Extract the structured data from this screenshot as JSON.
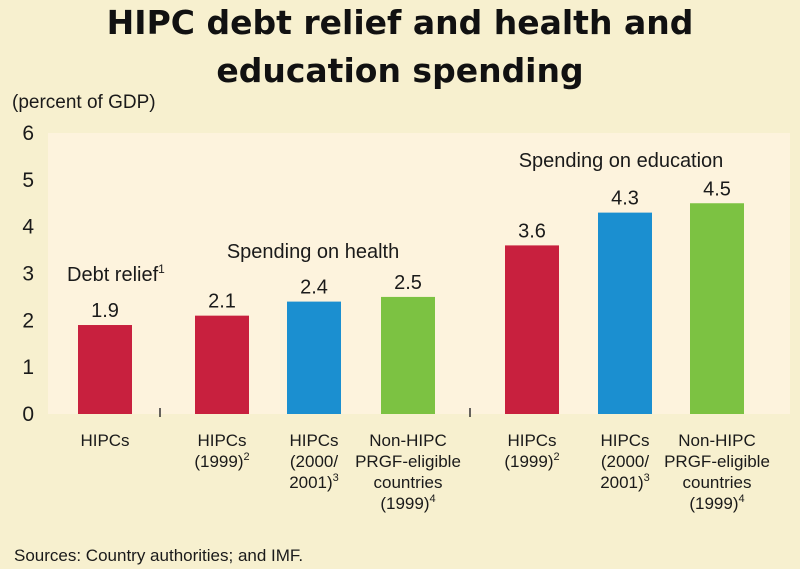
{
  "chart_data": {
    "type": "bar",
    "title_lines": [
      "HIPC debt relief and health and",
      "education spending"
    ],
    "ylabel": "(percent of GDP)",
    "ylim": [
      0,
      6
    ],
    "yticks": [
      0,
      1,
      2,
      3,
      4,
      5,
      6
    ],
    "grid": false,
    "groups": [
      {
        "name": "Debt relief",
        "footnote": "1",
        "bars": [
          {
            "label_lines": [
              "HIPCs"
            ],
            "label_sup": "",
            "value": 1.9,
            "value_label": "1.9",
            "color": "#c8203e"
          }
        ]
      },
      {
        "name": "Spending on health",
        "footnote": "",
        "bars": [
          {
            "label_lines": [
              "HIPCs",
              "(1999)"
            ],
            "label_sup": "2",
            "value": 2.1,
            "value_label": "2.1",
            "color": "#c8203e"
          },
          {
            "label_lines": [
              "HIPCs",
              "(2000/",
              "2001)"
            ],
            "label_sup": "3",
            "value": 2.4,
            "value_label": "2.4",
            "color": "#1b8fd0"
          },
          {
            "label_lines": [
              "Non-HIPC",
              "PRGF-eligible",
              "countries",
              "(1999)"
            ],
            "label_sup": "4",
            "value": 2.5,
            "value_label": "2.5",
            "color": "#7cc242"
          }
        ]
      },
      {
        "name": "Spending on education",
        "footnote": "",
        "bars": [
          {
            "label_lines": [
              "HIPCs",
              "(1999)"
            ],
            "label_sup": "2",
            "value": 3.6,
            "value_label": "3.6",
            "color": "#c8203e"
          },
          {
            "label_lines": [
              "HIPCs",
              "(2000/",
              "2001)"
            ],
            "label_sup": "3",
            "value": 4.3,
            "value_label": "4.3",
            "color": "#1b8fd0"
          },
          {
            "label_lines": [
              "Non-HIPC",
              "PRGF-eligible",
              "countries",
              "(1999)"
            ],
            "label_sup": "4",
            "value": 4.5,
            "value_label": "4.5",
            "color": "#7cc242"
          }
        ]
      }
    ]
  },
  "source": "Sources: Country authorities; and IMF."
}
